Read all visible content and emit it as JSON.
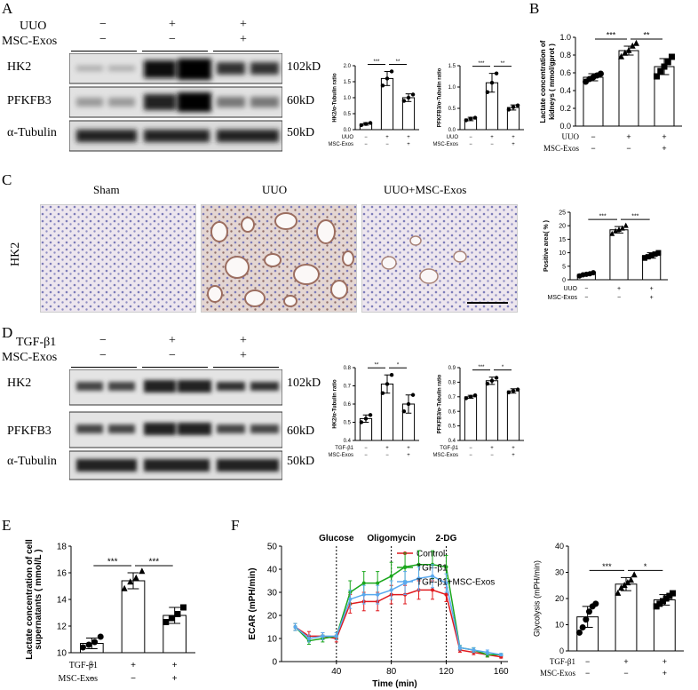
{
  "panels": {
    "A": "A",
    "B": "B",
    "C": "C",
    "D": "D",
    "E": "E",
    "F": "F"
  },
  "blotA": {
    "rows": [
      "UUO",
      "MSC-Exos"
    ],
    "signs": [
      [
        "−",
        "+",
        "+"
      ],
      [
        "−",
        "−",
        "+"
      ]
    ],
    "bands": [
      "HK2",
      "PFKFB3",
      "α-Tubulin"
    ],
    "sizes": [
      "102kD",
      "60kD",
      "50kD"
    ]
  },
  "blotD": {
    "rows": [
      "TGF-β1",
      "MSC-Exos"
    ],
    "signs": [
      [
        "−",
        "+",
        "+"
      ],
      [
        "−",
        "−",
        "+"
      ]
    ],
    "bands": [
      "HK2",
      "PFKFB3",
      "α-Tubulin"
    ],
    "sizes": [
      "102kD",
      "60kD",
      "50kD"
    ]
  },
  "ihc": {
    "row_label": "HK2",
    "titles": [
      "Sham",
      "UUO",
      "UUO+MSC-Exos"
    ]
  },
  "sig": {
    "three": "***",
    "two": "**",
    "one": "*"
  },
  "chart_data": [
    {
      "id": "A1",
      "type": "bar",
      "ylabel": "HK2/α-Tubulin ratio",
      "ylim": [
        0,
        2
      ],
      "yticks": [
        0,
        0.5,
        1.0,
        1.5,
        2.0
      ],
      "factor_rows": [
        "UUO",
        "MSC-Exos"
      ],
      "signs": [
        [
          "−",
          "+",
          "+"
        ],
        [
          "−",
          "−",
          "+"
        ]
      ],
      "values": [
        0.18,
        1.6,
        1.0
      ],
      "errors": [
        0.04,
        0.22,
        0.12
      ],
      "points": [
        [
          0.14,
          0.18,
          0.21
        ],
        [
          1.38,
          1.6,
          1.82
        ],
        [
          0.9,
          1.0,
          1.1
        ]
      ],
      "sig": [
        "***",
        "**"
      ]
    },
    {
      "id": "A2",
      "type": "bar",
      "ylabel": "PFKFB3/α-Tubulin ratio",
      "ylim": [
        0,
        1.5
      ],
      "yticks": [
        0,
        0.5,
        1.0,
        1.5
      ],
      "factor_rows": [
        "UUO",
        "MSC-Exos"
      ],
      "signs": [
        [
          "−",
          "+",
          "+"
        ],
        [
          "−",
          "−",
          "+"
        ]
      ],
      "values": [
        0.25,
        1.1,
        0.52
      ],
      "errors": [
        0.04,
        0.22,
        0.06
      ],
      "points": [
        [
          0.22,
          0.26,
          0.28
        ],
        [
          0.88,
          1.1,
          1.32
        ],
        [
          0.47,
          0.53,
          0.57
        ]
      ],
      "sig": [
        "***",
        "**"
      ]
    },
    {
      "id": "B",
      "type": "bar",
      "ylabel": "Lactate concentration of kidneys ( mmol/gprot )",
      "ylim": [
        0,
        1.0
      ],
      "yticks": [
        0.0,
        0.2,
        0.4,
        0.6,
        0.8,
        1.0
      ],
      "factor_rows": [
        "UUO",
        "MSC-Exos"
      ],
      "signs": [
        [
          "−",
          "+",
          "+"
        ],
        [
          "−",
          "−",
          "+"
        ]
      ],
      "values": [
        0.55,
        0.85,
        0.67
      ],
      "errors": [
        0.04,
        0.05,
        0.09
      ],
      "points": [
        [
          0.5,
          0.53,
          0.55,
          0.57,
          0.59
        ],
        [
          0.78,
          0.82,
          0.85,
          0.9,
          0.93
        ],
        [
          0.56,
          0.62,
          0.67,
          0.72,
          0.78
        ]
      ],
      "sig": [
        "***",
        "**"
      ]
    },
    {
      "id": "C",
      "type": "bar",
      "ylabel": "Positive area( % )",
      "ylim": [
        0,
        25
      ],
      "yticks": [
        0,
        5,
        10,
        15,
        20,
        25
      ],
      "factor_rows": [
        "UUO",
        "MSC-Exos"
      ],
      "signs": [
        [
          "−",
          "+",
          "+"
        ],
        [
          "−",
          "−",
          "+"
        ]
      ],
      "values": [
        2,
        18.5,
        9
      ],
      "errors": [
        0.5,
        1.2,
        1.0
      ],
      "points": [
        [
          1.4,
          1.8,
          2.0,
          2.2,
          2.6
        ],
        [
          17,
          18,
          18.5,
          19,
          20
        ],
        [
          8,
          8.5,
          9,
          9.5,
          10
        ]
      ],
      "sig": [
        "***",
        "***"
      ]
    },
    {
      "id": "D1",
      "type": "bar",
      "ylabel": "HK2/α-Tubulin ratio",
      "ylim": [
        0.4,
        0.8
      ],
      "yticks": [
        0.4,
        0.5,
        0.6,
        0.7,
        0.8
      ],
      "factor_rows": [
        "TGF-β1",
        "MSC-Exos"
      ],
      "signs": [
        [
          "−",
          "+",
          "+"
        ],
        [
          "−",
          "−",
          "+"
        ]
      ],
      "values": [
        0.52,
        0.71,
        0.6
      ],
      "errors": [
        0.02,
        0.05,
        0.05
      ],
      "points": [
        [
          0.5,
          0.52,
          0.54
        ],
        [
          0.66,
          0.71,
          0.76
        ],
        [
          0.56,
          0.6,
          0.65
        ]
      ],
      "sig": [
        "**",
        "*"
      ]
    },
    {
      "id": "D2",
      "type": "bar",
      "ylabel": "PFKFB3/α-Tubulin ratio",
      "ylim": [
        0.4,
        0.9
      ],
      "yticks": [
        0.4,
        0.5,
        0.6,
        0.7,
        0.8,
        0.9
      ],
      "factor_rows": [
        "TGF-β1",
        "MSC-Exos"
      ],
      "signs": [
        [
          "−",
          "+",
          "+"
        ],
        [
          "−",
          "−",
          "+"
        ]
      ],
      "values": [
        0.7,
        0.81,
        0.74
      ],
      "errors": [
        0.01,
        0.025,
        0.015
      ],
      "points": [
        [
          0.69,
          0.7,
          0.71
        ],
        [
          0.79,
          0.81,
          0.83
        ],
        [
          0.73,
          0.74,
          0.75
        ]
      ],
      "sig": [
        "***",
        "*"
      ]
    },
    {
      "id": "E",
      "type": "bar",
      "ylabel": "Lactate concentration of cell supernatants ( mmol/L )",
      "ylim": [
        10,
        18
      ],
      "yticks": [
        10,
        12,
        14,
        16,
        18
      ],
      "factor_rows": [
        "TGF-β1",
        "MSC-Exos"
      ],
      "signs": [
        [
          "−",
          "+",
          "+"
        ],
        [
          "−",
          "−",
          "+"
        ]
      ],
      "values": [
        10.7,
        15.4,
        12.8
      ],
      "errors": [
        0.4,
        0.6,
        0.6
      ],
      "points": [
        [
          10.4,
          10.6,
          10.8,
          11.2
        ],
        [
          14.8,
          15.3,
          15.6,
          16.1
        ],
        [
          12.3,
          12.6,
          12.9,
          13.4
        ]
      ],
      "sig": [
        "***",
        "***"
      ]
    },
    {
      "id": "F1",
      "type": "line",
      "xlabel": "Time (min)",
      "ylabel": "ECAR (mPH/min)",
      "xlim": [
        0,
        165
      ],
      "ylim": [
        0,
        50
      ],
      "xticks": [
        40,
        80,
        120,
        160
      ],
      "yticks": [
        0,
        10,
        20,
        30,
        40,
        50
      ],
      "annotations": [
        {
          "label": "Glucose",
          "x": 40
        },
        {
          "label": "Oligomycin",
          "x": 80
        },
        {
          "label": "2-DG",
          "x": 120
        }
      ],
      "x": [
        10,
        20,
        30,
        40,
        50,
        60,
        70,
        80,
        90,
        100,
        110,
        120,
        130,
        140,
        150,
        160
      ],
      "series": [
        {
          "name": "Control",
          "color": "#e0191e",
          "values": [
            15,
            11,
            11,
            10,
            25,
            26,
            26,
            29,
            29,
            31,
            31,
            29,
            5,
            4,
            3,
            2
          ],
          "errors": [
            1.5,
            2,
            1.5,
            1.5,
            4,
            4,
            4,
            4,
            4,
            4,
            4,
            3,
            1,
            1,
            1,
            0.5
          ]
        },
        {
          "name": "TGF-β1",
          "color": "#1aa71c",
          "values": [
            15,
            9,
            10,
            11,
            30,
            34,
            34,
            37,
            41,
            42,
            42,
            41,
            6,
            5,
            3,
            3
          ],
          "errors": [
            1.5,
            1.5,
            1.5,
            1.5,
            5,
            5,
            5,
            6,
            6,
            6,
            6,
            5,
            1,
            1,
            1,
            0.5
          ]
        },
        {
          "name": "TGF-β1+MSC-Exos",
          "color": "#5aa9ef",
          "values": [
            15,
            10,
            11,
            11,
            27,
            29,
            29,
            31,
            34,
            36,
            37,
            34,
            6,
            5,
            4,
            3
          ],
          "errors": [
            1.5,
            1.5,
            1.5,
            1.5,
            4,
            4,
            4,
            4,
            5,
            5,
            5,
            4,
            1,
            1,
            1,
            0.5
          ]
        }
      ]
    },
    {
      "id": "F2",
      "type": "bar",
      "ylabel": "Glycolysis (mPH/min)",
      "ylim": [
        0,
        40
      ],
      "yticks": [
        0,
        10,
        20,
        30,
        40
      ],
      "factor_rows": [
        "TGF-β1",
        "MSC-Exos"
      ],
      "signs": [
        [
          "−",
          "+",
          "+"
        ],
        [
          "−",
          "−",
          "+"
        ]
      ],
      "values": [
        13,
        25.5,
        19.5
      ],
      "errors": [
        4,
        2.5,
        2
      ],
      "points": [
        [
          7,
          9,
          12,
          15,
          17,
          18
        ],
        [
          22,
          24,
          25,
          26,
          27,
          29
        ],
        [
          17,
          18,
          19,
          20,
          21,
          22
        ]
      ],
      "sig": [
        "***",
        "*"
      ]
    }
  ]
}
